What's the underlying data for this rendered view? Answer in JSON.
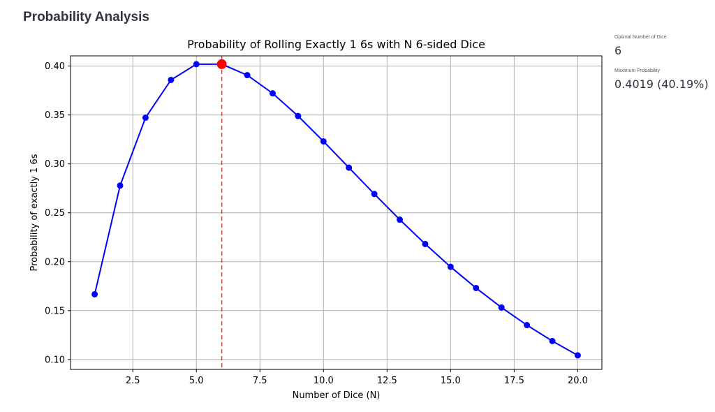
{
  "page": {
    "heading": "Probability Analysis"
  },
  "metrics": [
    {
      "label": "Optimal Number of Dice",
      "value": "6"
    },
    {
      "label": "Maximum Probability",
      "value": "0.4019 (40.19%)"
    }
  ],
  "chart_data": {
    "type": "line",
    "title": "Probability of Rolling Exactly 1 6s with N 6-sided Dice",
    "xlabel": "Number of Dice (N)",
    "ylabel": "Probability of exactly 1 6s",
    "xlim": [
      0.05,
      20.95
    ],
    "ylim": [
      0.0899,
      0.4104
    ],
    "xticks": [
      2.5,
      5.0,
      7.5,
      10.0,
      12.5,
      15.0,
      17.5,
      20.0
    ],
    "xtick_labels": [
      "2.5",
      "5.0",
      "7.5",
      "10.0",
      "12.5",
      "15.0",
      "17.5",
      "20.0"
    ],
    "yticks": [
      0.1,
      0.15,
      0.2,
      0.25,
      0.3,
      0.35,
      0.4
    ],
    "ytick_labels": [
      "0.10",
      "0.15",
      "0.20",
      "0.25",
      "0.30",
      "0.35",
      "0.40"
    ],
    "grid": true,
    "series": [
      {
        "color": "#0000ff",
        "x": [
          1,
          2,
          3,
          4,
          5,
          6,
          7,
          8,
          9,
          10,
          11,
          12,
          13,
          14,
          15,
          16,
          17,
          18,
          19,
          20
        ],
        "y": [
          0.1667,
          0.2778,
          0.3472,
          0.3858,
          0.4019,
          0.4019,
          0.3907,
          0.3721,
          0.3489,
          0.323,
          0.2961,
          0.2692,
          0.243,
          0.2181,
          0.1947,
          0.1731,
          0.1532,
          0.1352,
          0.1189,
          0.1043
        ]
      }
    ],
    "highlight": {
      "x": 6,
      "y": 0.4019,
      "color": "#ff0000"
    },
    "vline": {
      "x": 6,
      "color": "#ff0000"
    }
  }
}
